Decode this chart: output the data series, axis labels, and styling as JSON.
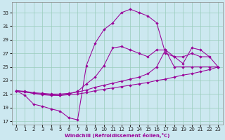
{
  "bg_color": "#cce8f0",
  "grid_color": "#99ccbb",
  "line_color": "#990099",
  "xlabel": "Windchill (Refroidissement éolien,°C)",
  "xlim": [
    -0.5,
    23.5
  ],
  "ylim": [
    16.5,
    34.5
  ],
  "yticks": [
    17,
    19,
    21,
    23,
    25,
    27,
    29,
    31,
    33
  ],
  "xticks": [
    0,
    1,
    2,
    3,
    4,
    5,
    6,
    7,
    8,
    9,
    10,
    11,
    12,
    13,
    14,
    15,
    16,
    17,
    18,
    19,
    20,
    21,
    22,
    23
  ],
  "series": [
    {
      "x": [
        0,
        1,
        2,
        3,
        4,
        5,
        6,
        7,
        8,
        9,
        10,
        11,
        12,
        13,
        14,
        15,
        16,
        17,
        18,
        19,
        20,
        21,
        22
      ],
      "y": [
        21.5,
        20.8,
        19.5,
        19.2,
        18.8,
        18.5,
        17.5,
        17.2,
        25.2,
        28.5,
        30.5,
        31.5,
        33.0,
        33.5,
        33.0,
        32.5,
        31.5,
        27.0,
        26.5,
        26.5,
        27.0,
        26.5,
        26.5
      ]
    },
    {
      "x": [
        0,
        1,
        2,
        3,
        4,
        5,
        6,
        7,
        8,
        9,
        10,
        11,
        12,
        13,
        14,
        15,
        16,
        17,
        18,
        19,
        20,
        21,
        22,
        23
      ],
      "y": [
        21.5,
        21.3,
        21.1,
        21.0,
        20.9,
        20.8,
        20.9,
        21.0,
        21.2,
        21.5,
        21.7,
        21.9,
        22.1,
        22.3,
        22.5,
        22.7,
        23.0,
        23.2,
        23.5,
        23.8,
        24.0,
        24.3,
        24.6,
        25.0
      ]
    },
    {
      "x": [
        0,
        1,
        2,
        3,
        4,
        5,
        6,
        7,
        8,
        9,
        10,
        11,
        12,
        13,
        14,
        15,
        16,
        17,
        18,
        19,
        20,
        21,
        22,
        23
      ],
      "y": [
        21.5,
        21.4,
        21.2,
        21.1,
        21.0,
        21.0,
        21.1,
        21.3,
        21.6,
        22.0,
        22.3,
        22.6,
        22.9,
        23.2,
        23.5,
        24.0,
        25.0,
        27.5,
        25.0,
        25.0,
        25.0,
        25.0,
        25.0,
        25.0
      ]
    },
    {
      "x": [
        0,
        1,
        2,
        3,
        4,
        5,
        6,
        7,
        8,
        9,
        10,
        11,
        12,
        13,
        14,
        15,
        16,
        17,
        18,
        19,
        20,
        21,
        22,
        23
      ],
      "y": [
        21.5,
        21.3,
        21.1,
        20.9,
        20.8,
        20.8,
        21.0,
        21.4,
        22.5,
        23.5,
        25.2,
        27.8,
        28.0,
        27.5,
        27.0,
        26.5,
        27.5,
        27.5,
        26.5,
        25.5,
        27.8,
        27.5,
        26.5,
        25.0
      ]
    }
  ]
}
